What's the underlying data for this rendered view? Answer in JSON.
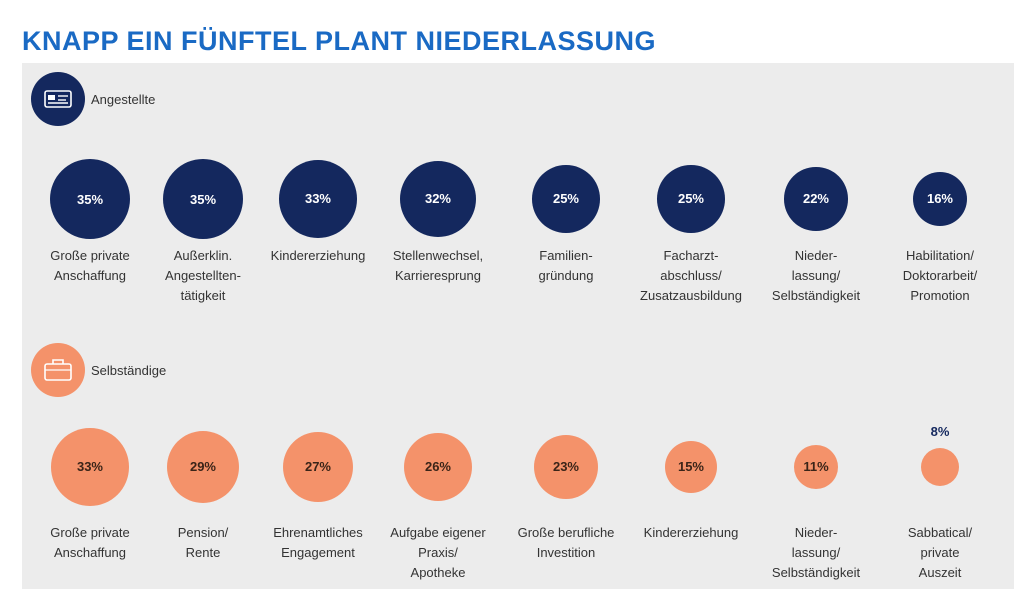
{
  "title": "KNAPP EIN FÜNFTEL PLANT NIEDERLASSUNG",
  "colors": {
    "title": "#1a6ac4",
    "navy": "#14285e",
    "orange": "#f4926a",
    "panel": "#ececec"
  },
  "groups": {
    "employed": {
      "label": "Angestellte",
      "icon": "employee-card-icon"
    },
    "selfemployed": {
      "label": "Selbständige",
      "icon": "briefcase-icon"
    }
  },
  "chart_data": [
    {
      "type": "bubble",
      "series": "Angestellte",
      "categories": [
        "Große private\nAnschaffung",
        "Außerklin.\nAngestellten-\ntätigkeit",
        "Kindererziehung",
        "Stellenwechsel,\nKarrieresprung",
        "Familien-\ngründung",
        "Facharzt-\nabschluss/\nZusatzausbildung",
        "Nieder-\nlassung/\nSelbständigkeit",
        "Habilitation/\nDoktorarbeit/\nPromotion"
      ],
      "values": [
        35,
        35,
        33,
        32,
        25,
        25,
        22,
        16
      ],
      "labels": [
        "35%",
        "35%",
        "33%",
        "32%",
        "25%",
        "25%",
        "22%",
        "16%"
      ]
    },
    {
      "type": "bubble",
      "series": "Selbständige",
      "categories": [
        "Große private\nAnschaffung",
        "Pension/\nRente",
        "Ehrenamtliches\nEngagement",
        "Aufgabe eigener\nPraxis/\nApotheke",
        "Große berufliche\nInvestition",
        "Kindererziehung",
        "Nieder-\nlassung/\nSelbständigkeit",
        "Sabbatical/\nprivate\nAuszeit"
      ],
      "values": [
        33,
        29,
        27,
        26,
        23,
        15,
        11,
        8
      ],
      "labels": [
        "33%",
        "29%",
        "27%",
        "26%",
        "23%",
        "15%",
        "11%",
        "8%"
      ]
    }
  ]
}
